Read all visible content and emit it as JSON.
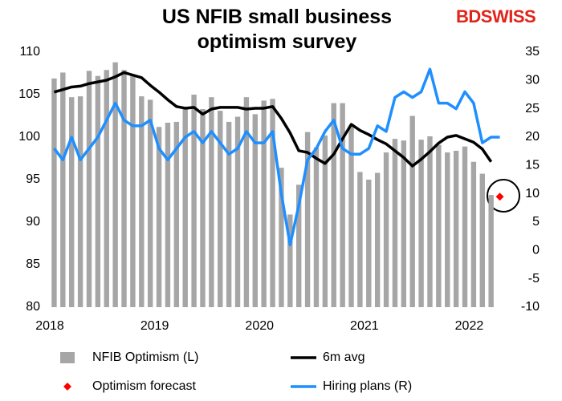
{
  "chart_data": {
    "type": "combo",
    "title": "US NFIB small business optimism survey",
    "logo": "BDSWISS",
    "categories": [
      "2018",
      null,
      null,
      null,
      null,
      null,
      null,
      null,
      null,
      null,
      null,
      null,
      "2019",
      null,
      null,
      null,
      null,
      null,
      null,
      null,
      null,
      null,
      null,
      null,
      "2020",
      null,
      null,
      null,
      null,
      null,
      null,
      null,
      null,
      null,
      null,
      null,
      "2021",
      null,
      null,
      null,
      null,
      null,
      null,
      null,
      null,
      null,
      null,
      null,
      "2022",
      null,
      null,
      null
    ],
    "ylim": [
      80,
      110
    ],
    "yticks": [
      80,
      85,
      90,
      95,
      100,
      105,
      110
    ],
    "y2lim": [
      -10,
      35
    ],
    "y2ticks": [
      -10,
      -5,
      0,
      5,
      10,
      15,
      20,
      25,
      30,
      35
    ],
    "grid": false,
    "series": [
      {
        "name": "NFIB Optimism (L)",
        "type": "bar",
        "color": "#a6a6a6",
        "values": [
          106.9,
          107.6,
          104.7,
          104.8,
          107.8,
          107.2,
          107.9,
          108.8,
          107.9,
          107.4,
          104.8,
          104.4,
          101.2,
          101.7,
          101.8,
          103.5,
          105.0,
          103.3,
          104.7,
          103.1,
          101.8,
          102.4,
          104.7,
          102.7,
          104.3,
          104.5,
          96.4,
          90.9,
          94.4,
          100.6,
          98.8,
          100.2,
          104.0,
          104.0,
          101.4,
          95.9,
          95.0,
          95.8,
          98.2,
          99.8,
          99.6,
          102.5,
          99.7,
          100.1,
          99.1,
          98.2,
          98.4,
          98.9,
          97.1,
          95.7,
          93.2,
          null
        ]
      },
      {
        "name": "6m avg",
        "type": "line",
        "color": "#000000",
        "values": [
          105.3,
          105.6,
          105.9,
          106.0,
          106.3,
          106.5,
          106.7,
          107.1,
          107.6,
          107.3,
          107.0,
          106.1,
          105.3,
          104.4,
          103.6,
          103.4,
          103.5,
          102.7,
          103.3,
          103.5,
          103.5,
          103.5,
          103.3,
          103.4,
          103.4,
          103.6,
          102.2,
          100.5,
          98.4,
          98.2,
          97.5,
          96.9,
          98.0,
          99.8,
          101.5,
          100.8,
          100.3,
          99.7,
          99.2,
          98.4,
          97.6,
          96.6,
          97.4,
          98.3,
          99.3,
          100.0,
          100.2,
          99.8,
          99.4,
          98.6,
          97.1,
          null
        ]
      },
      {
        "name": "Optimism forecast",
        "type": "scatter",
        "color": "#ff0000",
        "values": [
          null,
          null,
          null,
          null,
          null,
          null,
          null,
          null,
          null,
          null,
          null,
          null,
          null,
          null,
          null,
          null,
          null,
          null,
          null,
          null,
          null,
          null,
          null,
          null,
          null,
          null,
          null,
          null,
          null,
          null,
          null,
          null,
          null,
          null,
          null,
          null,
          null,
          null,
          null,
          null,
          null,
          null,
          null,
          null,
          null,
          null,
          null,
          null,
          null,
          null,
          null,
          93.0
        ]
      },
      {
        "name": "Hiring plans (R)",
        "type": "line",
        "axis": "y2",
        "color": "#1f8fff",
        "values": [
          18,
          16,
          20,
          16,
          18,
          20,
          23,
          26,
          23,
          22,
          22,
          23,
          18,
          16,
          18,
          20,
          21,
          19,
          21,
          19,
          17,
          18,
          21,
          19,
          19,
          21,
          10,
          1,
          8,
          16,
          18,
          21,
          23,
          18,
          17,
          17,
          18,
          22,
          21,
          27,
          28,
          27,
          28,
          32,
          26,
          26,
          25,
          28,
          26,
          19,
          20,
          20
        ]
      }
    ]
  }
}
